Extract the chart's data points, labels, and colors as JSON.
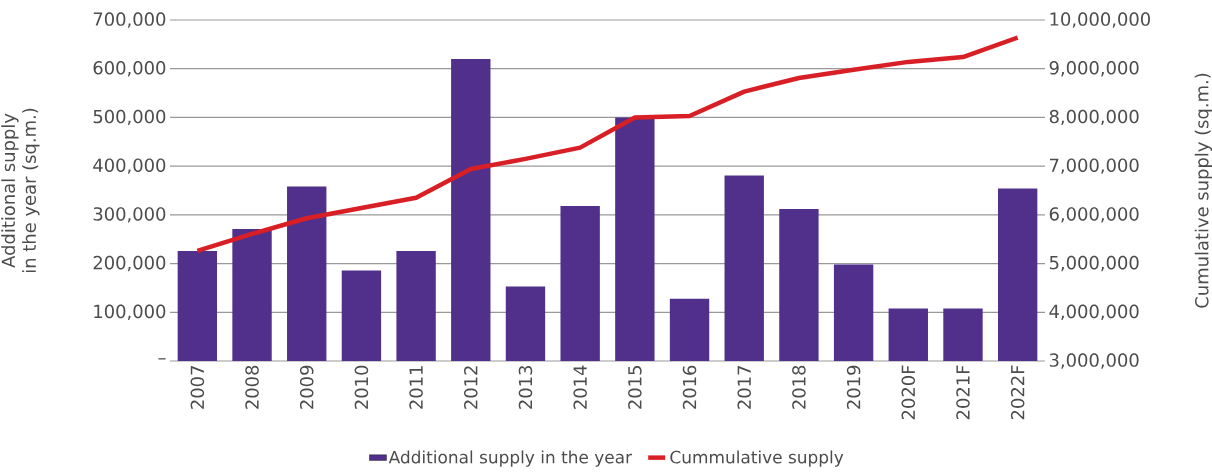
{
  "chart_data": {
    "type": "bar",
    "categories": [
      "2007",
      "2008",
      "2009",
      "2010",
      "2011",
      "2012",
      "2013",
      "2014",
      "2015",
      "2016",
      "2017",
      "2018",
      "2019",
      "2020F",
      "2021F",
      "2022F"
    ],
    "ylabel": "Additional supply in the year (sq.m.)",
    "y2label": "Cumulative supply (sq.m.)",
    "ylim": [
      0,
      700000
    ],
    "yticks": [
      {
        "value": 0,
        "label": "–"
      },
      {
        "value": 100000,
        "label": "100,000"
      },
      {
        "value": 200000,
        "label": "200,000"
      },
      {
        "value": 300000,
        "label": "300,000"
      },
      {
        "value": 400000,
        "label": "400,000"
      },
      {
        "value": 500000,
        "label": "500,000"
      },
      {
        "value": 600000,
        "label": "600,000"
      },
      {
        "value": 700000,
        "label": "700,000"
      }
    ],
    "y2lim": [
      3000000,
      10000000
    ],
    "y2ticks": [
      {
        "value": 3000000,
        "label": "3,000,000"
      },
      {
        "value": 4000000,
        "label": "4,000,000"
      },
      {
        "value": 5000000,
        "label": "5,000,000"
      },
      {
        "value": 6000000,
        "label": "6,000,000"
      },
      {
        "value": 7000000,
        "label": "7,000,000"
      },
      {
        "value": 8000000,
        "label": "8,000,000"
      },
      {
        "value": 9000000,
        "label": "9,000,000"
      },
      {
        "value": 10000000,
        "label": "10,000,000"
      }
    ],
    "series": [
      {
        "name": "Additional supply in the year",
        "color": "#51308c",
        "values": [
          226000,
          271000,
          358000,
          186000,
          226000,
          620000,
          153000,
          318000,
          500000,
          128000,
          381000,
          312000,
          198000,
          108000,
          108000,
          354000
        ]
      },
      {
        "name": "Cummulative supply",
        "type": "line",
        "axis": "y2",
        "color": "#d91f26",
        "values": [
          5260000,
          5610000,
          5930000,
          6140000,
          6350000,
          6940000,
          7150000,
          7380000,
          8000000,
          8030000,
          8530000,
          8810000,
          8980000,
          9140000,
          9240000,
          9640000
        ]
      }
    ],
    "grid": "y",
    "legend": "bottom"
  }
}
